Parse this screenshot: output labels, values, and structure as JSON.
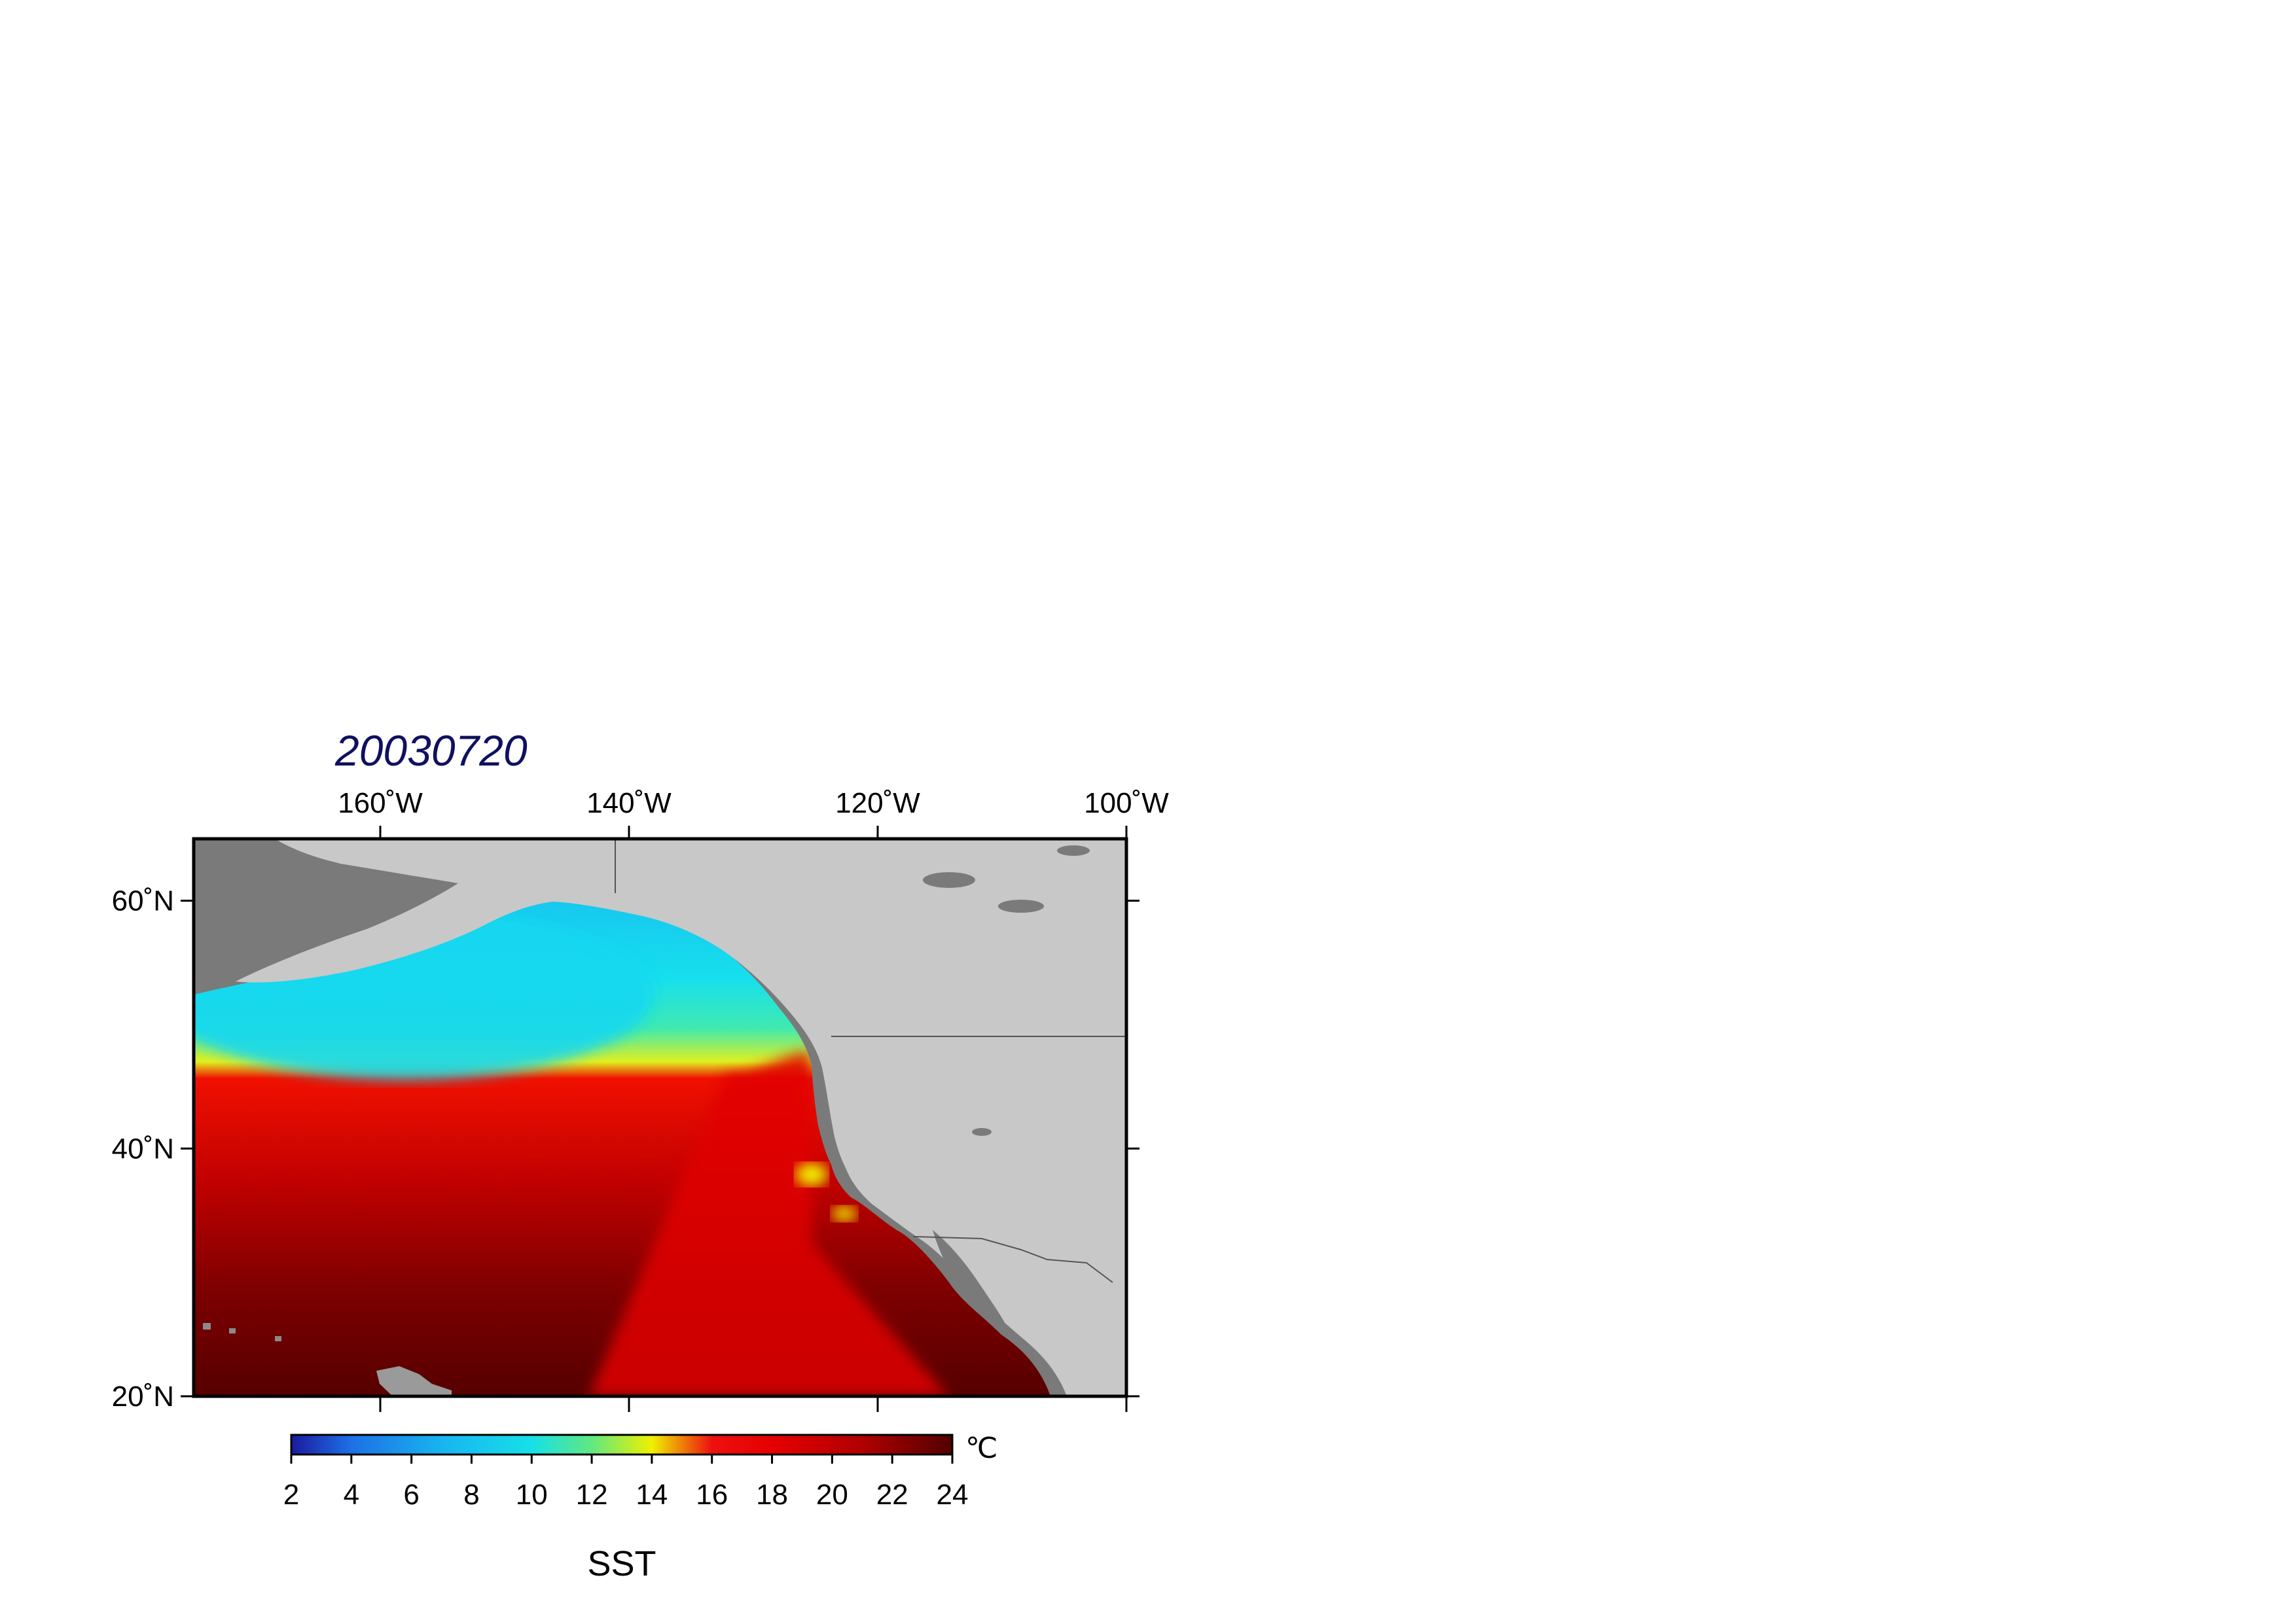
{
  "title": "20030720",
  "map": {
    "projection": "equirectangular",
    "lon_range": [
      -175,
      -100
    ],
    "lat_range": [
      20,
      65
    ],
    "lon_ticks": [
      {
        "value": -160,
        "label": "160˚W"
      },
      {
        "value": -140,
        "label": "140˚W"
      },
      {
        "value": -120,
        "label": "120˚W"
      },
      {
        "value": -100,
        "label": "100˚W"
      }
    ],
    "lat_ticks": [
      {
        "value": 60,
        "label": "60˚N"
      },
      {
        "value": 40,
        "label": "40˚N"
      },
      {
        "value": 20,
        "label": "20˚N"
      }
    ],
    "land_color": "#c8c8c8",
    "coast_shelf_color": "#7a7a7a",
    "border_color": "#000000"
  },
  "colorbar": {
    "label": "SST",
    "unit": "℃",
    "min": 2,
    "max": 24,
    "tick_labels": [
      "2",
      "4",
      "6",
      "8",
      "10",
      "12",
      "14",
      "16",
      "18",
      "20",
      "22",
      "24"
    ],
    "stops": [
      {
        "value": 2,
        "color": "#1a1aa0"
      },
      {
        "value": 4,
        "color": "#1e70e6"
      },
      {
        "value": 7,
        "color": "#18b4f0"
      },
      {
        "value": 10,
        "color": "#16e0e8"
      },
      {
        "value": 12,
        "color": "#60e880"
      },
      {
        "value": 14,
        "color": "#f0f000"
      },
      {
        "value": 16,
        "color": "#ee1010"
      },
      {
        "value": 18,
        "color": "#e60000"
      },
      {
        "value": 21,
        "color": "#b00000"
      },
      {
        "value": 24,
        "color": "#520000"
      }
    ]
  }
}
